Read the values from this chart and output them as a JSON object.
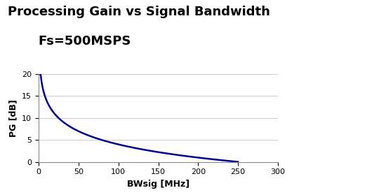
{
  "title_line1": "Processing Gain vs Signal Bandwidth",
  "title_line2": "Fs=500MSPS",
  "xlabel": "BWsig [MHz]",
  "ylabel": "PG [dB]",
  "Fs_MHz": 500,
  "xlim": [
    0,
    300
  ],
  "ylim": [
    0,
    20
  ],
  "xticks": [
    0,
    50,
    100,
    150,
    200,
    250,
    300
  ],
  "yticks": [
    0,
    5,
    10,
    15,
    20
  ],
  "line_color": "#00008B",
  "line_width": 1.8,
  "bg_color": "#ffffff",
  "plot_bg_color": "#ffffff",
  "grid_color": "#bbbbbb",
  "title_fontsize": 13,
  "subtitle_fontsize": 13,
  "axis_label_fontsize": 9,
  "tick_fontsize": 8
}
